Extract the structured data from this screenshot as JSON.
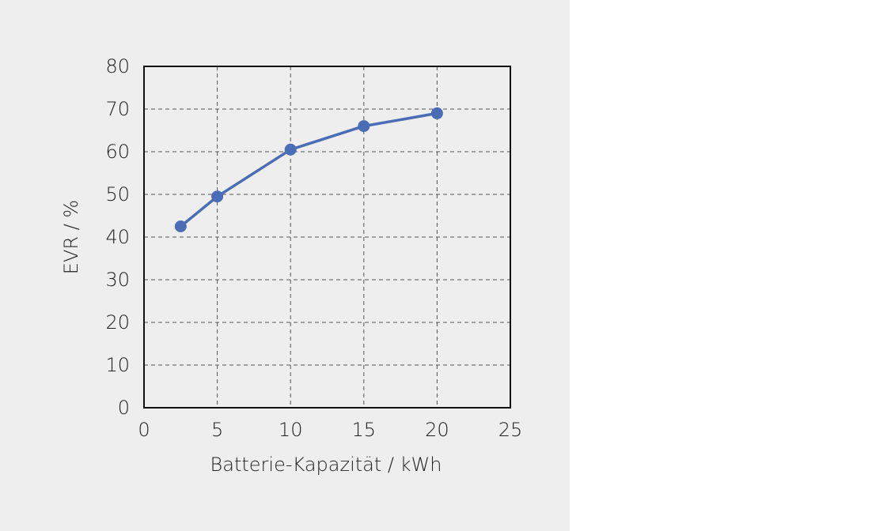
{
  "chart_data": {
    "type": "line",
    "title": "",
    "xlabel": "Batterie-Kapazität / kWh",
    "ylabel": "EVR / %",
    "xlim": [
      0,
      25
    ],
    "ylim": [
      0,
      80
    ],
    "xticks": [
      0,
      5,
      10,
      15,
      20,
      25
    ],
    "yticks": [
      0,
      10,
      20,
      30,
      40,
      50,
      60,
      70,
      80
    ],
    "grid": true,
    "legend": "none",
    "series": [
      {
        "name": "",
        "color": "#4a6db5",
        "markers": true,
        "x": [
          2.5,
          5,
          10,
          15,
          20
        ],
        "y": [
          42.5,
          49.5,
          60.5,
          66,
          69
        ]
      }
    ]
  }
}
